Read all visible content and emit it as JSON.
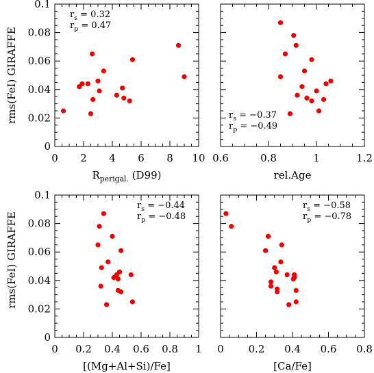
{
  "chart_data": [
    {
      "type": "scatter",
      "panel": "top-left",
      "xlabel": "R",
      "xlabel_sub": "perigal.",
      "xlabel_suffix": " (D99)",
      "ylabel": "rms(FeI) GIRAFFE",
      "xlim": [
        0,
        10
      ],
      "ylim": [
        0,
        0.1
      ],
      "xticks": [
        "0",
        "2",
        "4",
        "6",
        "8",
        "10"
      ],
      "yticks": [
        "0",
        "0.02",
        "0.04",
        "0.06",
        "0.08",
        "0.1"
      ],
      "annotation": {
        "rs_label": "r",
        "rs_sub": "s",
        "rs_value": "=  0.32",
        "rp_label": "r",
        "rp_sub": "p",
        "rp_value": "=  0.47",
        "position": "top-left"
      },
      "points": [
        {
          "x": 0.6,
          "y": 0.025
        },
        {
          "x": 1.7,
          "y": 0.042
        },
        {
          "x": 1.9,
          "y": 0.044
        },
        {
          "x": 2.3,
          "y": 0.044
        },
        {
          "x": 2.5,
          "y": 0.023
        },
        {
          "x": 2.6,
          "y": 0.065
        },
        {
          "x": 2.65,
          "y": 0.033
        },
        {
          "x": 3.0,
          "y": 0.046
        },
        {
          "x": 3.1,
          "y": 0.039
        },
        {
          "x": 3.4,
          "y": 0.053
        },
        {
          "x": 4.3,
          "y": 0.036
        },
        {
          "x": 4.7,
          "y": 0.041
        },
        {
          "x": 4.8,
          "y": 0.034
        },
        {
          "x": 5.2,
          "y": 0.032
        },
        {
          "x": 5.4,
          "y": 0.061
        },
        {
          "x": 8.6,
          "y": 0.071
        },
        {
          "x": 9.0,
          "y": 0.049
        }
      ]
    },
    {
      "type": "scatter",
      "panel": "top-right",
      "xlabel": "rel.Age",
      "ylabel": "",
      "xlim": [
        0.6,
        1.2
      ],
      "ylim": [
        0,
        0.1
      ],
      "xticks": [
        "0.6",
        "0.8",
        "1",
        "1.2"
      ],
      "yticks": [],
      "annotation": {
        "rs_label": "r",
        "rs_sub": "s",
        "rs_value": "= −0.37",
        "rp_label": "r",
        "rp_sub": "p",
        "rp_value": "= −0.49",
        "position": "bottom-left"
      },
      "points": [
        {
          "x": 0.85,
          "y": 0.087
        },
        {
          "x": 0.85,
          "y": 0.049
        },
        {
          "x": 0.87,
          "y": 0.065
        },
        {
          "x": 0.89,
          "y": 0.023
        },
        {
          "x": 0.905,
          "y": 0.078
        },
        {
          "x": 0.915,
          "y": 0.071
        },
        {
          "x": 0.92,
          "y": 0.036
        },
        {
          "x": 0.94,
          "y": 0.042
        },
        {
          "x": 0.95,
          "y": 0.053
        },
        {
          "x": 0.96,
          "y": 0.034
        },
        {
          "x": 0.98,
          "y": 0.032
        },
        {
          "x": 0.98,
          "y": 0.061
        },
        {
          "x": 1.0,
          "y": 0.039
        },
        {
          "x": 1.01,
          "y": 0.025
        },
        {
          "x": 1.03,
          "y": 0.033
        },
        {
          "x": 1.04,
          "y": 0.044
        },
        {
          "x": 1.06,
          "y": 0.046
        }
      ]
    },
    {
      "type": "scatter",
      "panel": "bottom-left",
      "xlabel": "[(Mg+Al+Si)/Fe]",
      "ylabel": "rms(FeI) GIRAFFE",
      "xlim": [
        0,
        1
      ],
      "ylim": [
        0,
        0.1
      ],
      "xticks": [
        "0",
        "0.2",
        "0.4",
        "0.6",
        "0.8",
        "1"
      ],
      "yticks": [
        "0",
        "0.02",
        "0.04",
        "0.06",
        "0.08",
        "0.1"
      ],
      "annotation": {
        "rs_label": "r",
        "rs_sub": "s",
        "rs_value": "= −0.44",
        "rp_label": "r",
        "rp_sub": "p",
        "rp_value": "= −0.48",
        "position": "top-right"
      },
      "points": [
        {
          "x": 0.3,
          "y": 0.065
        },
        {
          "x": 0.31,
          "y": 0.078
        },
        {
          "x": 0.32,
          "y": 0.036
        },
        {
          "x": 0.325,
          "y": 0.049
        },
        {
          "x": 0.34,
          "y": 0.087
        },
        {
          "x": 0.36,
          "y": 0.023
        },
        {
          "x": 0.37,
          "y": 0.053
        },
        {
          "x": 0.4,
          "y": 0.071
        },
        {
          "x": 0.41,
          "y": 0.042
        },
        {
          "x": 0.43,
          "y": 0.044
        },
        {
          "x": 0.44,
          "y": 0.041
        },
        {
          "x": 0.44,
          "y": 0.033
        },
        {
          "x": 0.45,
          "y": 0.046
        },
        {
          "x": 0.46,
          "y": 0.032
        },
        {
          "x": 0.46,
          "y": 0.061
        },
        {
          "x": 0.53,
          "y": 0.044
        },
        {
          "x": 0.54,
          "y": 0.025
        }
      ]
    },
    {
      "type": "scatter",
      "panel": "bottom-right",
      "xlabel": "[Ca/Fe]",
      "ylabel": "",
      "xlim": [
        0,
        0.8
      ],
      "ylim": [
        0,
        0.1
      ],
      "xticks": [
        "0",
        "0.2",
        "0.4",
        "0.6",
        "0.8"
      ],
      "yticks": [],
      "annotation": {
        "rs_label": "r",
        "rs_sub": "s",
        "rs_value": "= −0.58",
        "rp_label": "r",
        "rp_sub": "p",
        "rp_value": "= −0.78",
        "position": "top-right"
      },
      "points": [
        {
          "x": 0.03,
          "y": 0.087
        },
        {
          "x": 0.06,
          "y": 0.078
        },
        {
          "x": 0.25,
          "y": 0.061
        },
        {
          "x": 0.265,
          "y": 0.071
        },
        {
          "x": 0.28,
          "y": 0.036
        },
        {
          "x": 0.28,
          "y": 0.039
        },
        {
          "x": 0.3,
          "y": 0.049
        },
        {
          "x": 0.31,
          "y": 0.046
        },
        {
          "x": 0.315,
          "y": 0.032
        },
        {
          "x": 0.315,
          "y": 0.034
        },
        {
          "x": 0.335,
          "y": 0.053
        },
        {
          "x": 0.34,
          "y": 0.065
        },
        {
          "x": 0.37,
          "y": 0.044
        },
        {
          "x": 0.38,
          "y": 0.023
        },
        {
          "x": 0.405,
          "y": 0.041
        },
        {
          "x": 0.41,
          "y": 0.044
        },
        {
          "x": 0.42,
          "y": 0.025
        },
        {
          "x": 0.42,
          "y": 0.033
        },
        {
          "x": 0.41,
          "y": 0.042
        }
      ]
    }
  ]
}
